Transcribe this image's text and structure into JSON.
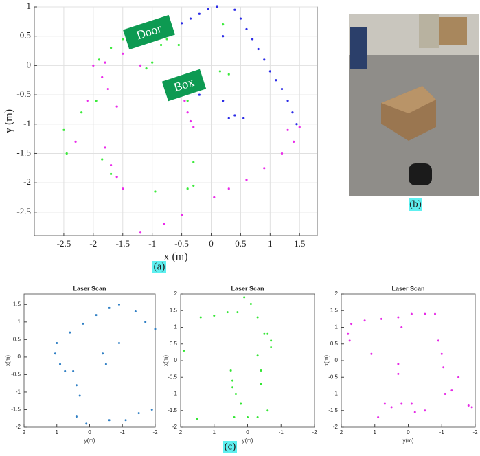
{
  "figure_labels": [
    "(a)",
    "(b)",
    "(c)"
  ],
  "chart_data": [
    {
      "type": "scatter",
      "xlabel": "x (m)",
      "ylabel": "y (m)",
      "annotations": [
        "Door",
        "Box"
      ],
      "xlim": [
        -3,
        1.8
      ],
      "ylim": [
        -2.9,
        1
      ],
      "xticks": [
        -2.5,
        -2,
        -1.5,
        -1,
        -0.5,
        0,
        0.5,
        1,
        1.5
      ],
      "yticks": [
        -2.5,
        -2,
        -1.5,
        -1,
        -0.5,
        0,
        0.5,
        1
      ],
      "grid": true,
      "series": [
        {
          "color": "#2b2be6",
          "x": [
            -0.5,
            -0.35,
            -0.2,
            -0.05,
            0.1,
            0.4,
            0.5,
            0.6,
            0.7,
            0.8,
            0.9,
            1.0,
            1.1,
            1.2,
            1.3,
            1.38,
            1.45,
            0.2,
            0.3,
            0.4,
            0.55,
            -0.2,
            0.2
          ],
          "values": [
            0.72,
            0.8,
            0.88,
            0.96,
            1.0,
            0.95,
            0.8,
            0.62,
            0.45,
            0.28,
            0.1,
            -0.1,
            -0.25,
            -0.4,
            -0.6,
            -0.8,
            -1.0,
            -0.6,
            -0.9,
            -0.85,
            -0.9,
            -0.5,
            0.5
          ]
        },
        {
          "color": "#3cea3c",
          "x": [
            -1.95,
            -1.9,
            -1.7,
            -1.5,
            -1.3,
            -1.1,
            -1.0,
            -0.85,
            -0.75,
            -0.55,
            -0.45,
            -0.35,
            -0.25,
            -0.4,
            -2.2,
            -2.5,
            -2.45,
            -1.85,
            -1.7,
            -0.95,
            -0.4,
            -0.3,
            -0.3,
            0.2,
            0.15,
            0.3
          ],
          "values": [
            -0.6,
            0.1,
            0.3,
            0.45,
            0.55,
            -0.05,
            0.05,
            0.35,
            0.45,
            0.35,
            -0.45,
            -0.42,
            -0.4,
            -0.6,
            -0.8,
            -1.1,
            -1.5,
            -1.6,
            -1.85,
            -2.15,
            -2.1,
            -2.05,
            -1.65,
            0.7,
            -0.1,
            -0.15
          ]
        },
        {
          "color": "#ea2aea",
          "x": [
            -2.0,
            -1.85,
            -1.75,
            -1.6,
            -1.8,
            -1.7,
            -1.6,
            -1.5,
            -2.3,
            -2.1,
            -1.8,
            -1.5,
            -1.2,
            -0.45,
            -0.4,
            -0.35,
            -0.3,
            0.05,
            0.3,
            0.6,
            0.9,
            1.2,
            1.4,
            1.3,
            1.5,
            -0.8,
            -1.2,
            -0.5
          ],
          "values": [
            0.0,
            -0.2,
            -0.4,
            -0.7,
            -1.4,
            -1.7,
            -1.9,
            -2.1,
            -1.3,
            -0.6,
            0.05,
            0.2,
            0.0,
            -0.6,
            -0.8,
            -0.95,
            -1.05,
            -2.25,
            -2.1,
            -1.95,
            -1.75,
            -1.5,
            -1.3,
            -1.1,
            -1.05,
            -2.7,
            -2.85,
            -2.55
          ]
        }
      ]
    },
    {
      "type": "scatter",
      "title": "Laser Scan",
      "xlabel": "y(m)",
      "ylabel": "x(m)",
      "xlim": [
        2,
        -2
      ],
      "ylim": [
        -2,
        1.8
      ],
      "xticks": [
        2,
        1,
        0,
        -1,
        -2
      ],
      "yticks": [
        -2,
        -1.5,
        -1,
        -0.5,
        0,
        0.5,
        1,
        1.5
      ],
      "grid": false,
      "series": [
        {
          "color": "#2f7fc4",
          "x": [
            1,
            0.6,
            0.2,
            -0.2,
            -0.6,
            -0.9,
            1.05,
            0.9,
            0.75,
            0.5,
            0.4,
            0.3,
            -0.5,
            -0.4,
            -1.4,
            -1.7,
            -2,
            -0.6,
            -1.1,
            -1.5,
            -1.9,
            0.1,
            0.4,
            -0.9
          ],
          "values": [
            0.4,
            0.7,
            0.95,
            1.2,
            1.4,
            1.5,
            0.1,
            -0.2,
            -0.4,
            -0.4,
            -0.8,
            -1.1,
            -0.2,
            0.1,
            1.3,
            1.0,
            0.8,
            -1.8,
            -1.8,
            -1.6,
            -1.5,
            -1.9,
            -1.7,
            0.4
          ]
        }
      ]
    },
    {
      "type": "scatter",
      "title": "Laser Scan",
      "xlabel": "y(m)",
      "ylabel": "x(m)",
      "xlim": [
        2,
        -2
      ],
      "ylim": [
        -2,
        2
      ],
      "xticks": [
        2,
        1,
        0,
        -1,
        -2
      ],
      "yticks": [
        -2,
        -1.5,
        -1,
        -0.5,
        0,
        0.5,
        1,
        1.5,
        2
      ],
      "grid": false,
      "series": [
        {
          "color": "#33e633",
          "x": [
            1.4,
            1,
            0.6,
            0.3,
            0.1,
            -0.1,
            -0.3,
            -0.5,
            -0.6,
            -0.7,
            -0.7,
            -0.3,
            -0.4,
            -0.4,
            0.5,
            0.45,
            0.45,
            0.35,
            0.2,
            0.4,
            0,
            -0.3,
            1.9,
            1.5,
            -0.6
          ],
          "values": [
            1.3,
            1.35,
            1.45,
            1.45,
            1.9,
            1.7,
            1.3,
            0.8,
            0.8,
            0.6,
            0.4,
            0.15,
            -0.3,
            -0.7,
            -0.3,
            -0.6,
            -0.8,
            -1.0,
            -1.3,
            -1.7,
            -1.7,
            -1.7,
            0.3,
            -1.75,
            -1.5
          ]
        }
      ]
    },
    {
      "type": "scatter",
      "title": "Laser Scan",
      "xlabel": "y(m)",
      "ylabel": "x(m)",
      "xlim": [
        2,
        -2
      ],
      "ylim": [
        -2,
        2
      ],
      "xticks": [
        2,
        1,
        0,
        -1,
        -2
      ],
      "yticks": [
        -2,
        -1.5,
        -1,
        -0.5,
        0,
        0.5,
        1,
        1.5,
        2
      ],
      "grid": false,
      "series": [
        {
          "color": "#e62ae6",
          "x": [
            1.7,
            1.3,
            0.8,
            0.3,
            1.75,
            1.8,
            1.1,
            0.2,
            -0.1,
            -0.5,
            -0.8,
            -0.9,
            -1.0,
            -1.05,
            0.3,
            0.3,
            0.7,
            0.5,
            0.2,
            -0.1,
            -0.2,
            -0.5,
            -1.1,
            -1.3,
            -1.8,
            -1.9,
            -1.5,
            0.9
          ],
          "values": [
            1.1,
            1.2,
            1.25,
            1.3,
            0.6,
            0.8,
            0.2,
            1.0,
            1.4,
            1.4,
            1.4,
            0.6,
            0.2,
            -0.2,
            -0.1,
            -0.4,
            -1.3,
            -1.4,
            -1.3,
            -1.3,
            -1.55,
            -1.5,
            -1.0,
            -0.9,
            -1.35,
            -1.4,
            -0.5,
            -1.7
          ]
        }
      ]
    }
  ]
}
